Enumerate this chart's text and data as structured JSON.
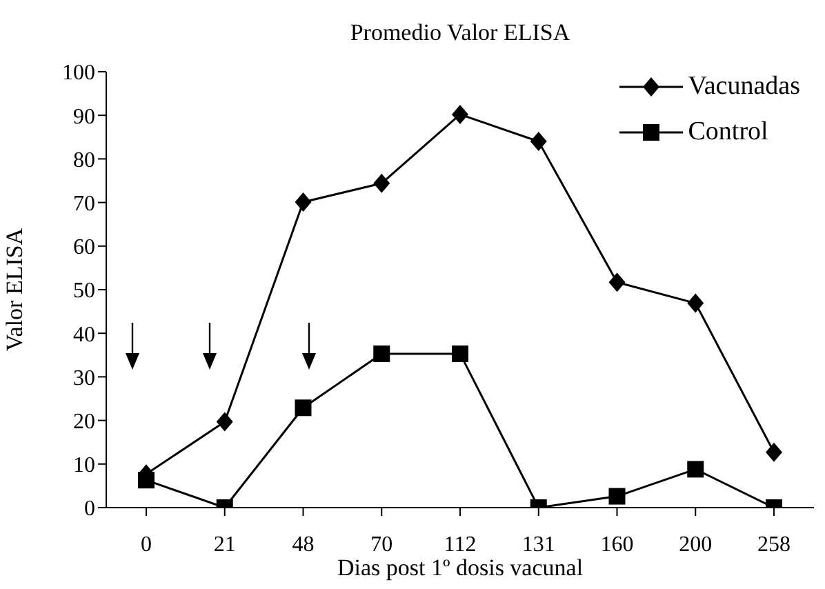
{
  "chart_data": {
    "type": "line",
    "title": "Promedio Valor ELISA",
    "xlabel": "Dias post 1º dosis vacunal",
    "ylabel": "Valor ELISA",
    "categories": [
      "0",
      "21",
      "48",
      "70",
      "112",
      "131",
      "160",
      "200",
      "258"
    ],
    "series": [
      {
        "name": "Vacunadas",
        "color": "#000000",
        "marker": "diamond",
        "values": [
          7.7,
          19.7,
          70.1,
          74.4,
          90.2,
          84,
          51.7,
          46.9,
          12.7
        ]
      },
      {
        "name": "Control",
        "color": "#000000",
        "marker": "square",
        "values": [
          6.3,
          0,
          22.9,
          35.3,
          35.3,
          0,
          2.6,
          8.8,
          0
        ]
      }
    ],
    "ylim": [
      0,
      100
    ],
    "yticks": [
      0,
      10,
      20,
      30,
      40,
      50,
      60,
      70,
      80,
      90,
      100
    ],
    "grid": false,
    "legend": "top right"
  }
}
